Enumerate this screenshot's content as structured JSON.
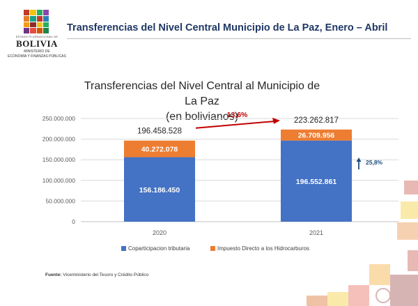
{
  "logo": {
    "top_text": "ESTADO PLURINACIONAL DE",
    "name": "BOLIVIA",
    "ministry_line1": "MINISTERIO DE",
    "ministry_line2": "ECONOMÍA Y FINANZAS PÚBLICAS"
  },
  "header": {
    "title": "Transferencias del Nivel Central Municipio de La Paz, Enero – Abril"
  },
  "chart_data": {
    "type": "bar",
    "stacked": true,
    "title": "Transferencias del Nivel Central al Municipio de La Paz",
    "subtitle": "(en bolivianos)",
    "categories": [
      "2020",
      "2021"
    ],
    "series": [
      {
        "name": "Coparticipacion tributaria",
        "values": [
          156186450,
          196552861
        ],
        "labels": [
          "156.186.450",
          "196.552.861"
        ],
        "color": "#4472c4"
      },
      {
        "name": "Impuesto Directo a los Hidrocarburos",
        "values": [
          40272078,
          26709956
        ],
        "labels": [
          "40.272.078",
          "26.709.956"
        ],
        "color": "#ed7d31"
      }
    ],
    "totals": [
      196458528,
      223262817
    ],
    "total_labels": [
      "196.458.528",
      "223.262.817"
    ],
    "yticks": [
      0,
      50000000,
      100000000,
      150000000,
      200000000,
      250000000
    ],
    "ytick_labels": [
      "0",
      "50.000.000",
      "100.000.000",
      "150.000.000",
      "200.000.000",
      "250.000.000"
    ],
    "ylim": [
      0,
      250000000
    ],
    "grid": true,
    "legend": "bottom",
    "annotations": {
      "total_growth": "13,6%",
      "coparticipacion_growth": "25,8%",
      "growth_color": "#c00000",
      "coparticipacion_color": "#1f4e79"
    }
  },
  "footer": {
    "source_label": "Fuente:",
    "source_text": "Viceministerio del Tesoro y Crédito Público"
  }
}
